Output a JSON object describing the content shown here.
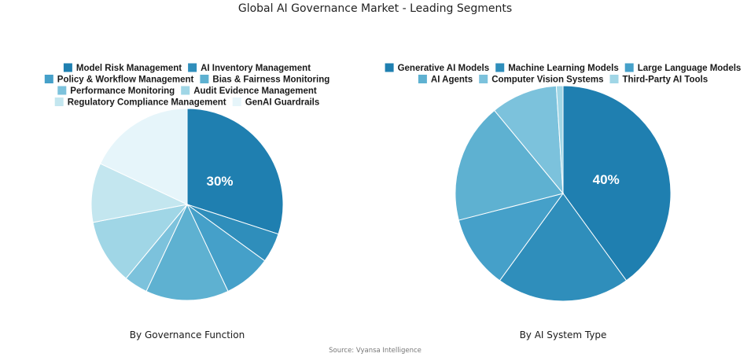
{
  "title": "Global AI Governance Market - Leading Segments",
  "source": "Source: Vyansa Intelligence",
  "chart_data": [
    {
      "type": "pie",
      "subtitle": "By Governance Function",
      "categories": [
        "Model Risk Management",
        "AI Inventory Management",
        "Policy & Workflow Management",
        "Bias & Fairness Monitoring",
        "Performance Monitoring",
        "Audit Evidence Management",
        "Regulatory Compliance Management",
        "GenAI Guardrails"
      ],
      "values": [
        30,
        5,
        8,
        14,
        4,
        11,
        10,
        18
      ],
      "colors": [
        "#1f7fb0",
        "#2f8ebb",
        "#45a0c9",
        "#5eb1d1",
        "#7cc2dc",
        "#a0d6e6",
        "#c3e6ef",
        "#e6f5fa"
      ],
      "labels": [
        "30%",
        "",
        "",
        "",
        "",
        "",
        "",
        ""
      ],
      "legend_position": "top"
    },
    {
      "type": "pie",
      "subtitle": "By AI System Type",
      "categories": [
        "Generative AI Models",
        "Machine Learning Models",
        "Large Language Models",
        "AI Agents",
        "Computer Vision Systems",
        "Third-Party AI Tools"
      ],
      "values": [
        40,
        20,
        11,
        18,
        10,
        1
      ],
      "colors": [
        "#1f7fb0",
        "#2f8ebb",
        "#45a0c9",
        "#5eb1d1",
        "#7cc2dc",
        "#a0d6e6"
      ],
      "labels": [
        "40%",
        "",
        "",
        "",
        "",
        ""
      ],
      "legend_position": "top"
    }
  ]
}
